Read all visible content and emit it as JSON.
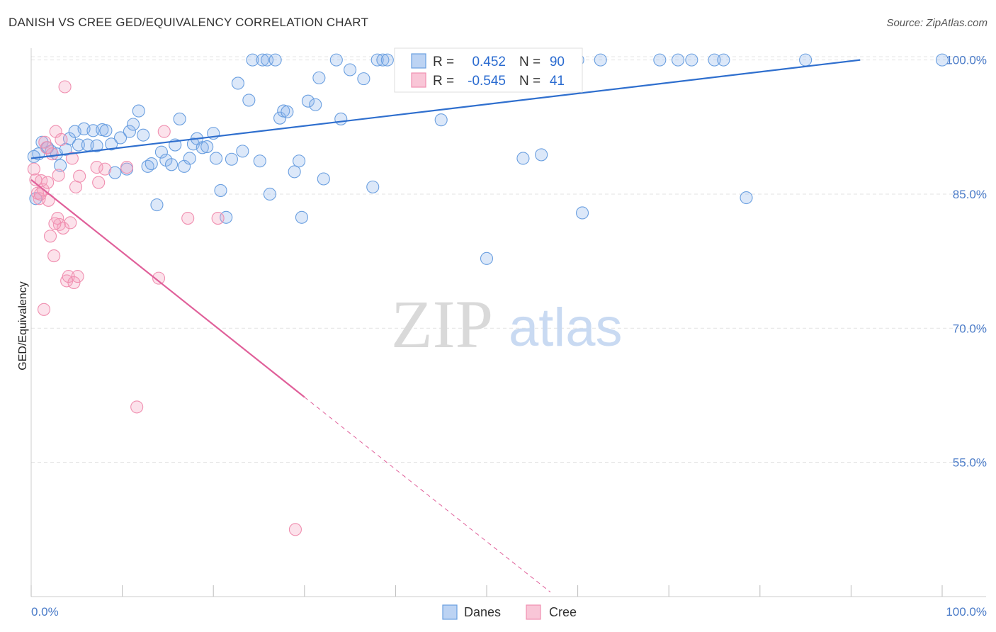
{
  "title": "DANISH VS CREE GED/EQUIVALENCY CORRELATION CHART",
  "source": "Source: ZipAtlas.com",
  "watermark": {
    "zip": "ZIP",
    "atlas": "atlas"
  },
  "chart_data": {
    "type": "scatter",
    "ylabel": "GED/Equivalency",
    "xlim": [
      0,
      100
    ],
    "ylim": [
      40,
      101
    ],
    "y_ticks": [
      {
        "value": 100,
        "label": "100.0%"
      },
      {
        "value": 85,
        "label": "85.0%"
      },
      {
        "value": 70,
        "label": "70.0%"
      },
      {
        "value": 55,
        "label": "55.0%"
      }
    ],
    "x_tick_labels": {
      "left": "0.0%",
      "right": "100.0%"
    },
    "grid": true,
    "legend": {
      "placement": "top-center",
      "rows": [
        {
          "r_label": "R =",
          "r_value": "0.452",
          "n_label": "N =",
          "n_value": "90"
        },
        {
          "r_label": "R =",
          "r_value": "-0.545",
          "n_label": "N =",
          "n_value": "41"
        }
      ]
    },
    "colors": {
      "danes": "#6a9fe0",
      "cree": "#f08fb0",
      "danes_line": "#2f6fce",
      "cree_line": "#e0609a"
    },
    "series": [
      {
        "name": "Danes",
        "points": [
          [
            0.5,
            84.5
          ],
          [
            0.8,
            89.5
          ],
          [
            1.2,
            90.8
          ],
          [
            1.8,
            90.2
          ],
          [
            2.2,
            89.8
          ],
          [
            2.8,
            89.5
          ],
          [
            3.2,
            88.2
          ],
          [
            3.8,
            90.0
          ],
          [
            4.2,
            91.2
          ],
          [
            4.8,
            92.0
          ],
          [
            5.2,
            90.5
          ],
          [
            5.8,
            92.3
          ],
          [
            6.2,
            90.5
          ],
          [
            6.8,
            92.1
          ],
          [
            7.2,
            90.4
          ],
          [
            7.8,
            92.2
          ],
          [
            8.2,
            92.1
          ],
          [
            8.8,
            90.6
          ],
          [
            9.2,
            87.4
          ],
          [
            9.8,
            91.3
          ],
          [
            10.5,
            87.8
          ],
          [
            10.8,
            92.0
          ],
          [
            11.2,
            92.8
          ],
          [
            11.8,
            94.3
          ],
          [
            12.3,
            91.6
          ],
          [
            12.8,
            88.1
          ],
          [
            13.2,
            88.4
          ],
          [
            13.8,
            83.8
          ],
          [
            14.3,
            89.7
          ],
          [
            14.8,
            88.8
          ],
          [
            15.4,
            88.3
          ],
          [
            15.8,
            90.5
          ],
          [
            16.3,
            93.4
          ],
          [
            16.8,
            88.1
          ],
          [
            17.4,
            89.0
          ],
          [
            17.8,
            90.6
          ],
          [
            18.2,
            91.2
          ],
          [
            18.8,
            90.2
          ],
          [
            19.3,
            90.3
          ],
          [
            20.0,
            91.8
          ],
          [
            20.3,
            89.0
          ],
          [
            20.8,
            85.4
          ],
          [
            21.4,
            82.4
          ],
          [
            22.0,
            88.9
          ],
          [
            22.7,
            97.4
          ],
          [
            23.2,
            89.8
          ],
          [
            23.9,
            95.5
          ],
          [
            24.3,
            100.0
          ],
          [
            25.1,
            88.7
          ],
          [
            25.4,
            100.0
          ],
          [
            25.9,
            100.0
          ],
          [
            26.2,
            85.0
          ],
          [
            26.8,
            100.0
          ],
          [
            27.3,
            93.5
          ],
          [
            27.7,
            94.3
          ],
          [
            28.1,
            94.2
          ],
          [
            28.9,
            87.5
          ],
          [
            29.4,
            88.7
          ],
          [
            29.7,
            82.4
          ],
          [
            30.4,
            95.4
          ],
          [
            31.2,
            95.0
          ],
          [
            31.6,
            98.0
          ],
          [
            32.1,
            86.7
          ],
          [
            33.5,
            100.0
          ],
          [
            34.0,
            93.4
          ],
          [
            35.0,
            98.9
          ],
          [
            36.5,
            97.9
          ],
          [
            37.5,
            85.8
          ],
          [
            38.0,
            100.0
          ],
          [
            38.6,
            100.0
          ],
          [
            39.1,
            100.0
          ],
          [
            42.0,
            100.0
          ],
          [
            45.0,
            93.3
          ],
          [
            45.2,
            100.0
          ],
          [
            46.5,
            100.0
          ],
          [
            50.0,
            77.8
          ],
          [
            54.0,
            89.0
          ],
          [
            56.0,
            89.4
          ],
          [
            60.0,
            100.0
          ],
          [
            60.5,
            82.9
          ],
          [
            62.5,
            100.0
          ],
          [
            69.0,
            100.0
          ],
          [
            71.0,
            100.0
          ],
          [
            72.5,
            100.0
          ],
          [
            75.0,
            100.0
          ],
          [
            76.0,
            100.0
          ],
          [
            78.5,
            84.6
          ],
          [
            85.0,
            100.0
          ],
          [
            100.0,
            100.0
          ],
          [
            0.3,
            89.2
          ]
        ]
      },
      {
        "name": "Cree",
        "points": [
          [
            0.3,
            87.8
          ],
          [
            0.5,
            86.6
          ],
          [
            0.7,
            85.1
          ],
          [
            0.9,
            84.5
          ],
          [
            1.1,
            86.5
          ],
          [
            1.3,
            85.5
          ],
          [
            1.5,
            90.8
          ],
          [
            1.7,
            90.2
          ],
          [
            1.9,
            84.3
          ],
          [
            2.1,
            80.3
          ],
          [
            2.3,
            89.5
          ],
          [
            2.5,
            78.1
          ],
          [
            2.7,
            92.0
          ],
          [
            2.9,
            82.3
          ],
          [
            3.1,
            81.6
          ],
          [
            3.3,
            91.1
          ],
          [
            3.5,
            81.2
          ],
          [
            3.7,
            97.0
          ],
          [
            3.9,
            75.3
          ],
          [
            4.1,
            75.8
          ],
          [
            4.3,
            81.8
          ],
          [
            4.5,
            89.0
          ],
          [
            4.7,
            75.1
          ],
          [
            4.9,
            85.8
          ],
          [
            5.1,
            75.8
          ],
          [
            5.3,
            87.0
          ],
          [
            7.2,
            88.0
          ],
          [
            7.4,
            86.3
          ],
          [
            8.1,
            87.8
          ],
          [
            10.5,
            88.0
          ],
          [
            11.6,
            61.2
          ],
          [
            14.0,
            75.6
          ],
          [
            14.6,
            92.0
          ],
          [
            17.2,
            82.3
          ],
          [
            20.5,
            82.3
          ],
          [
            29.0,
            47.5
          ],
          [
            1.0,
            85.0
          ],
          [
            1.8,
            86.3
          ],
          [
            2.6,
            81.7
          ],
          [
            3.0,
            87.1
          ],
          [
            1.4,
            72.1
          ]
        ]
      }
    ],
    "trend_lines": [
      {
        "name": "Danes",
        "x0": 0,
        "y0": 89.0,
        "x1": 91,
        "y1": 100.0
      },
      {
        "name": "Cree",
        "x0": 0,
        "y0": 86.6,
        "x1": 30,
        "y1": 62.3,
        "dash_to_x": 57,
        "dash_to_y": 40.5
      }
    ]
  }
}
